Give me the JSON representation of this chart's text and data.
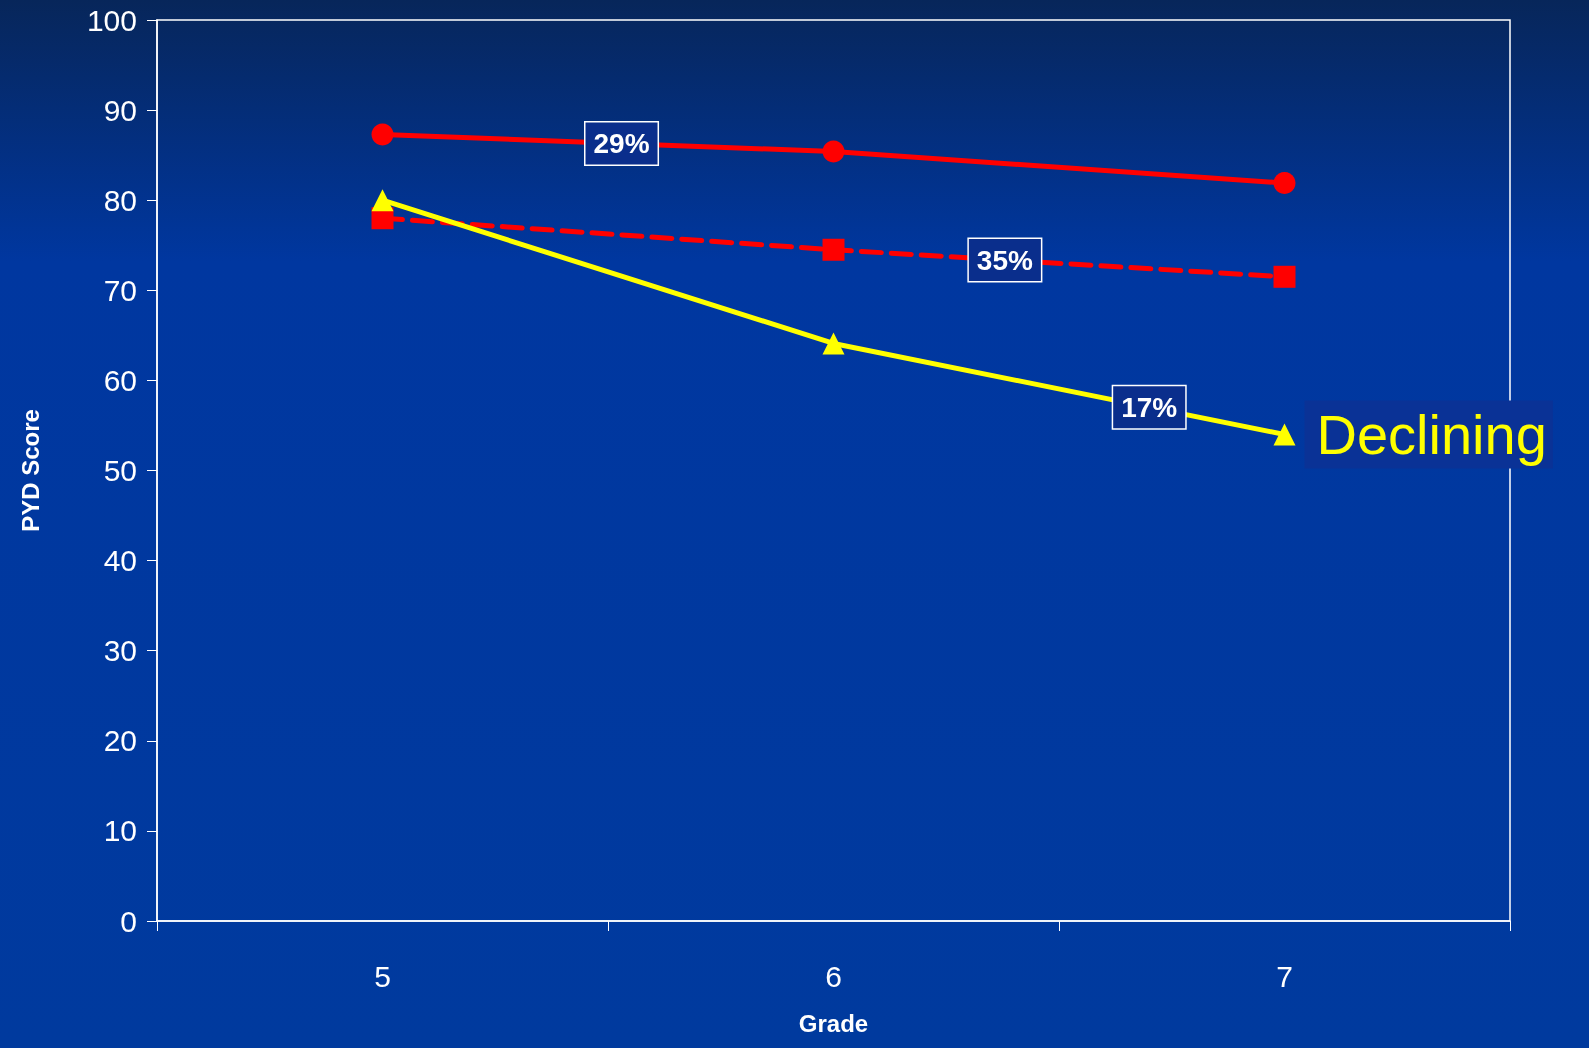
{
  "chart_data": {
    "type": "line",
    "xlabel": "Grade",
    "ylabel": "PYD Score",
    "categories": [
      "5",
      "6",
      "7"
    ],
    "series": [
      {
        "color": "#ff0000",
        "marker": "circle",
        "line_style": "solid",
        "values": [
          87.3,
          85.4,
          81.9
        ]
      },
      {
        "color": "#ff0000",
        "marker": "square",
        "line_style": "dashed",
        "values": [
          78.0,
          74.5,
          71.5
        ]
      },
      {
        "color": "#ffff00",
        "marker": "triangle",
        "line_style": "solid",
        "values": [
          80.0,
          64.1,
          54.0
        ]
      }
    ],
    "ylim": [
      0,
      100
    ],
    "yticks": [
      0,
      10,
      20,
      30,
      40,
      50,
      60,
      70,
      80,
      90,
      100
    ],
    "grid": false,
    "annotations": [
      "29%",
      "35%",
      "17%",
      "Declining"
    ]
  }
}
